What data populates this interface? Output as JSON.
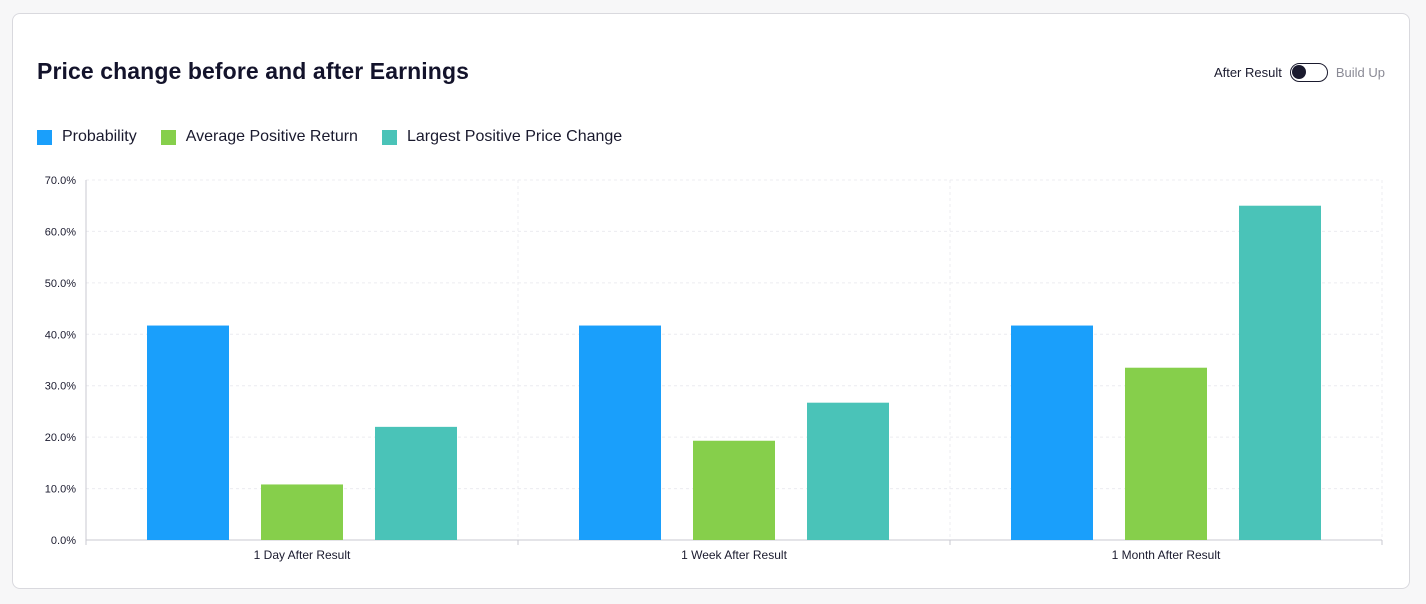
{
  "header": {
    "title": "Price change before and after Earnings",
    "toggle_left_label": "After Result",
    "toggle_right_label": "Build Up"
  },
  "colors": {
    "probability": "#1a9ffb",
    "average_positive_return": "#86cf4b",
    "largest_positive_price_change": "#4ac3b8",
    "grid": "#ececf0",
    "axis": "#c9c9d0"
  },
  "chart_data": {
    "type": "bar",
    "title": "Price change before and after Earnings",
    "xlabel": "",
    "ylabel": "",
    "ylim": [
      0,
      70
    ],
    "yticks": [
      "0.0%",
      "10.0%",
      "20.0%",
      "30.0%",
      "40.0%",
      "50.0%",
      "60.0%",
      "70.0%"
    ],
    "categories": [
      "1 Day After Result",
      "1 Week After Result",
      "1 Month After Result"
    ],
    "series": [
      {
        "name": "Probability",
        "color": "#1a9ffb",
        "values": [
          41.7,
          41.7,
          41.7
        ]
      },
      {
        "name": "Average Positive Return",
        "color": "#86cf4b",
        "values": [
          10.8,
          19.3,
          33.5
        ]
      },
      {
        "name": "Largest Positive Price Change",
        "color": "#4ac3b8",
        "values": [
          22.0,
          26.7,
          65.0
        ]
      }
    ],
    "legend_position": "top-left",
    "grid": true
  }
}
